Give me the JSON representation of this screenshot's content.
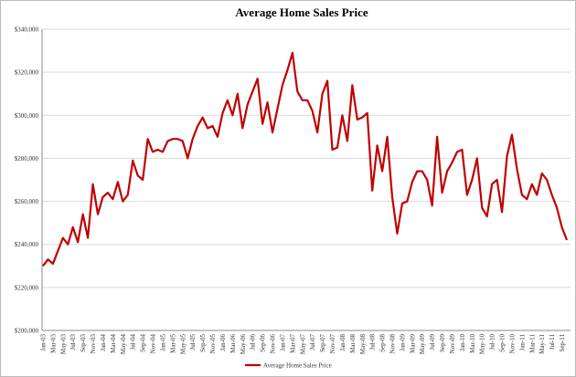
{
  "chart_data": {
    "type": "line",
    "title": "Average Home Sales Price",
    "categories": [
      "Jan-03",
      null,
      "Mar-03",
      null,
      "May-03",
      null,
      "Jul-03",
      null,
      "Sep-03",
      null,
      "Nov-03",
      null,
      "Jan-04",
      null,
      "Mar-04",
      null,
      "May-04",
      null,
      "Jul-04",
      null,
      "Sep-04",
      null,
      "Nov-04",
      null,
      "Jan-05",
      null,
      "Mar-05",
      null,
      "May-05",
      null,
      "Jul-05",
      null,
      "Sep-05",
      null,
      "Nov-05",
      null,
      "Jan-06",
      null,
      "Mar-06",
      null,
      "May-06",
      null,
      "Jul-06",
      null,
      "Sep-06",
      null,
      "Nov-06",
      null,
      "Jan-07",
      null,
      "Mar-07",
      null,
      "May-07",
      null,
      "Jul-07",
      null,
      "Sep-07",
      null,
      "Nov-07",
      null,
      "Jan-08",
      null,
      "Mar-08",
      null,
      "May-08",
      null,
      "Jul-08",
      null,
      "Sep-08",
      null,
      "Nov-08",
      null,
      "Jan-09",
      null,
      "Mar-09",
      null,
      "May-09",
      null,
      "Jul-09",
      null,
      "Sep-09",
      null,
      "Nov-09",
      null,
      "Jan-10",
      null,
      "Mar-10",
      null,
      "May-10",
      null,
      "Jul-10",
      null,
      "Sep-10",
      null,
      "Nov-10",
      null,
      "Jan-11",
      null,
      "Mar-11",
      null,
      "May-11",
      null,
      "Jul-11",
      null,
      "Sep-11",
      null
    ],
    "series": [
      {
        "name": "Average Home Sales Price",
        "color": "#c00000",
        "values": [
          230000,
          233000,
          231000,
          237000,
          243000,
          240000,
          248000,
          241000,
          254000,
          243000,
          268000,
          254000,
          262000,
          264000,
          261000,
          269000,
          260000,
          263000,
          279000,
          272000,
          270000,
          289000,
          283000,
          284000,
          283000,
          288000,
          289000,
          289000,
          288000,
          280000,
          289000,
          295000,
          299000,
          294000,
          295000,
          290000,
          301000,
          307000,
          300000,
          310000,
          294000,
          305000,
          311000,
          317000,
          296000,
          306000,
          292000,
          303000,
          314000,
          321000,
          329000,
          311000,
          307000,
          307000,
          302000,
          292000,
          310000,
          316000,
          284000,
          285000,
          300000,
          288000,
          314000,
          298000,
          299000,
          301000,
          265000,
          286000,
          274000,
          290000,
          262000,
          245000,
          259000,
          260000,
          269000,
          274000,
          274000,
          270000,
          258000,
          290000,
          264000,
          274000,
          278000,
          283000,
          284000,
          263000,
          270000,
          280000,
          257000,
          253000,
          268000,
          270000,
          255000,
          281000,
          291000,
          275000,
          263000,
          261000,
          268000,
          263000,
          273000,
          270000,
          263000,
          257000,
          248000,
          242000
        ]
      }
    ],
    "ylim": [
      200000,
      340000
    ],
    "yticks": [
      {
        "value": 200000,
        "label": "$200,000"
      },
      {
        "value": 220000,
        "label": "$220,000"
      },
      {
        "value": 240000,
        "label": "$240,000"
      },
      {
        "value": 260000,
        "label": "$260,000"
      },
      {
        "value": 280000,
        "label": "$280,000"
      },
      {
        "value": 300000,
        "label": "$300,000"
      },
      {
        "value": 320000,
        "label": "$320,000"
      },
      {
        "value": 340000,
        "label": "$340,000"
      }
    ],
    "grid": true
  }
}
